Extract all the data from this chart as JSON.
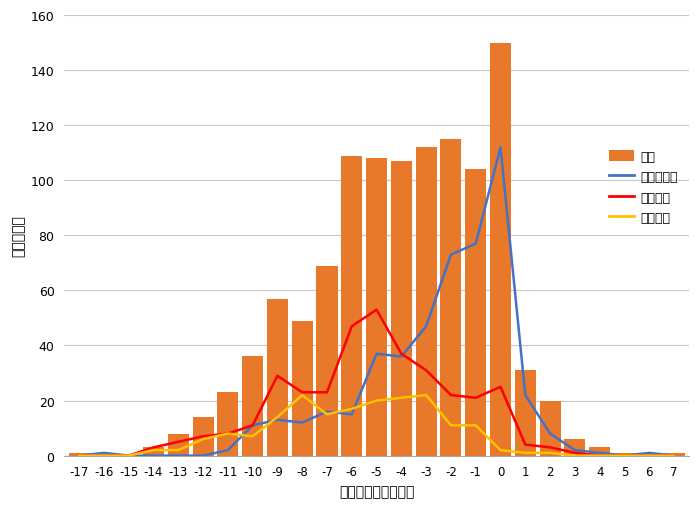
{
  "x_labels": [
    -17,
    -16,
    -15,
    -14,
    -13,
    -12,
    -11,
    -10,
    -9,
    -8,
    -7,
    -6,
    -5,
    -4,
    -3,
    -2,
    -1,
    0,
    1,
    2,
    3,
    4,
    5,
    6,
    7
  ],
  "bar_values": [
    1,
    1,
    0,
    3,
    8,
    14,
    23,
    36,
    57,
    49,
    69,
    109,
    108,
    107,
    112,
    115,
    104,
    150,
    31,
    20,
    6,
    3,
    1,
    1,
    1
  ],
  "line_zengo": [
    0,
    1,
    0,
    0,
    0,
    0,
    2,
    11,
    13,
    12,
    16,
    15,
    37,
    36,
    47,
    73,
    77,
    112,
    22,
    8,
    2,
    1,
    0,
    1,
    0
  ],
  "line_zenki": [
    0,
    0,
    0,
    3,
    5,
    7,
    8,
    11,
    29,
    23,
    23,
    47,
    53,
    37,
    31,
    22,
    21,
    25,
    4,
    3,
    1,
    0,
    0,
    0,
    0
  ],
  "line_koki": [
    0,
    0,
    0,
    2,
    2,
    6,
    8,
    7,
    14,
    22,
    15,
    17,
    20,
    21,
    22,
    11,
    11,
    2,
    1,
    1,
    0,
    0,
    0,
    0,
    0
  ],
  "bar_color": "#E8782A",
  "line_zengo_color": "#4472C4",
  "line_zenki_color": "#FF0000",
  "line_koki_color": "#FFC000",
  "ylabel": "メッシュ数",
  "xlabel": "人口増減割合（％）",
  "ylim": [
    0,
    160
  ],
  "yticks": [
    0,
    20,
    40,
    60,
    80,
    100,
    120,
    140,
    160
  ],
  "legend_labels": [
    "全体",
    "前後期とも",
    "前期のみ",
    "後期のみ"
  ],
  "bg_color": "#FFFFFF",
  "grid_color": "#C8C8C8"
}
